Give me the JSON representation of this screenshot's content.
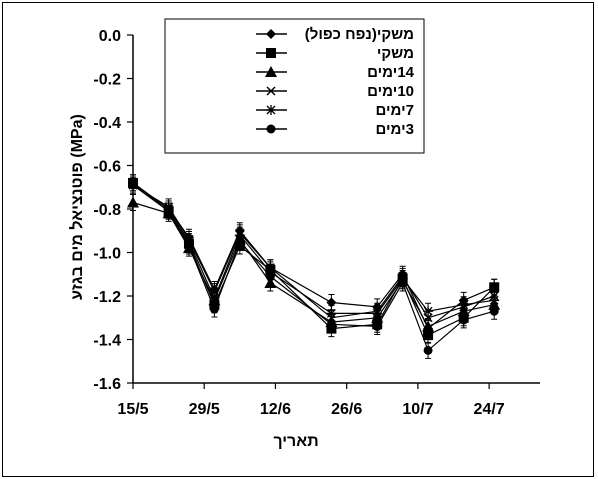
{
  "chart_data": {
    "type": "line",
    "xlabel": "תאריך",
    "ylabel": "פוטנציאל מים בגזע (MPa)",
    "ylim": [
      -1.6,
      0.0
    ],
    "yticks": [
      "0.0",
      "-0.2",
      "-0.4",
      "-0.6",
      "-0.8",
      "-1.0",
      "-1.2",
      "-1.4",
      "-1.6"
    ],
    "ytick_values": [
      0.0,
      -0.2,
      -0.4,
      -0.6,
      -0.8,
      -1.0,
      -1.2,
      -1.4,
      -1.6
    ],
    "xticks": [
      "15/5",
      "29/5",
      "12/6",
      "26/6",
      "10/7",
      "24/7"
    ],
    "xtick_values": [
      0,
      14,
      28,
      42,
      56,
      70
    ],
    "xlim": [
      0,
      80
    ],
    "x": [
      0,
      7,
      11,
      16,
      21,
      27,
      39,
      48,
      53,
      58,
      65,
      71
    ],
    "series": [
      {
        "name": "משקי(נפח כפול)",
        "marker": "diamond",
        "values": [
          -0.68,
          -0.8,
          -0.93,
          -1.17,
          -0.9,
          -1.07,
          -1.23,
          -1.25,
          -1.1,
          -1.35,
          -1.22,
          -1.16
        ]
      },
      {
        "name": "משקי",
        "marker": "square",
        "values": [
          -0.68,
          -0.81,
          -0.96,
          -1.24,
          -0.97,
          -1.08,
          -1.35,
          -1.33,
          -1.12,
          -1.38,
          -1.3,
          -1.16
        ]
      },
      {
        "name": "14ימים",
        "marker": "triangle",
        "values": [
          -0.77,
          -0.82,
          -0.98,
          -1.22,
          -0.94,
          -1.14,
          -1.32,
          -1.3,
          -1.13,
          -1.34,
          -1.27,
          -1.24
        ]
      },
      {
        "name": "10ימים",
        "marker": "x",
        "values": [
          -0.69,
          -0.79,
          -0.94,
          -1.18,
          -0.91,
          -1.07,
          -1.3,
          -1.27,
          -1.11,
          -1.3,
          -1.25,
          -1.2
        ]
      },
      {
        "name": "7ימים",
        "marker": "star",
        "values": [
          -0.68,
          -0.8,
          -0.95,
          -1.21,
          -0.92,
          -1.09,
          -1.28,
          -1.28,
          -1.12,
          -1.27,
          -1.24,
          -1.22
        ]
      },
      {
        "name": "3ימים",
        "marker": "circle",
        "values": [
          -0.69,
          -0.81,
          -0.97,
          -1.26,
          -0.95,
          -1.11,
          -1.33,
          -1.34,
          -1.14,
          -1.45,
          -1.31,
          -1.27
        ]
      }
    ],
    "grid": false,
    "legend": "top-right"
  }
}
